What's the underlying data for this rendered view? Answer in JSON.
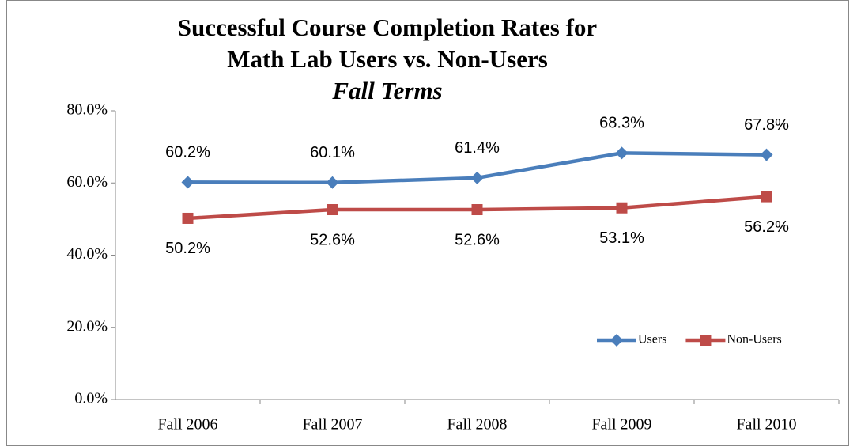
{
  "chart_data": {
    "type": "line",
    "title": [
      "Successful Course Completion Rates for",
      "Math Lab Users vs. Non-Users"
    ],
    "subtitle": "Fall Terms",
    "categories": [
      "Fall 2006",
      "Fall 2007",
      "Fall 2008",
      "Fall 2009",
      "Fall 2010"
    ],
    "series": [
      {
        "name": "Users",
        "color": "#4a7ebb",
        "marker": "diamond",
        "values": [
          60.2,
          60.1,
          61.4,
          68.3,
          67.8
        ],
        "value_labels": [
          "60.2%",
          "60.1%",
          "61.4%",
          "68.3%",
          "67.8%"
        ],
        "label_position": "above"
      },
      {
        "name": "Non-Users",
        "color": "#be4b48",
        "marker": "square",
        "values": [
          50.2,
          52.6,
          52.6,
          53.1,
          56.2
        ],
        "value_labels": [
          "50.2%",
          "52.6%",
          "52.6%",
          "53.1%",
          "56.2%"
        ],
        "label_position": "below"
      }
    ],
    "ylim": [
      0,
      80
    ],
    "yticks": [
      {
        "value": 0,
        "label": "0.0%"
      },
      {
        "value": 20,
        "label": "20.0%"
      },
      {
        "value": 40,
        "label": "40.0%"
      },
      {
        "value": 60,
        "label": "60.0%"
      },
      {
        "value": 80,
        "label": "80.0%"
      }
    ],
    "grid": false,
    "legend": "lower right"
  }
}
